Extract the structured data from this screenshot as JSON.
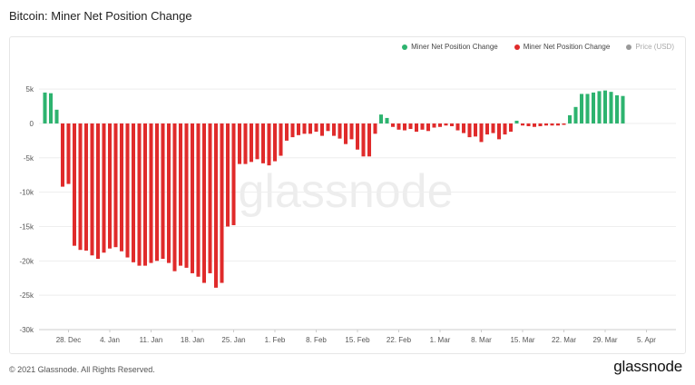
{
  "title": "Bitcoin: Miner Net Position Change",
  "footer": {
    "copyright": "© 2021 Glassnode. All Rights Reserved.",
    "logo": "glassnode"
  },
  "watermark": "glassnode",
  "colors": {
    "positive": "#2db36f",
    "negative": "#e02b2b",
    "price": "#999999",
    "grid": "#eeeeee"
  },
  "chart_data": {
    "type": "bar",
    "title": "Bitcoin: Miner Net Position Change",
    "legend": [
      {
        "name": "Miner Net Position Change",
        "color": "#2db36f",
        "icon": "green-dot"
      },
      {
        "name": "Miner Net Position Change",
        "color": "#e02b2b",
        "icon": "red-dot"
      },
      {
        "name": "Price (USD)",
        "color": "#999999",
        "icon": "gray-dot"
      }
    ],
    "legend_position": "top-right",
    "x_range": [
      "2020-12-23",
      "2021-04-10"
    ],
    "ylim": [
      -30000,
      7000
    ],
    "y_ticks": [
      5000,
      0,
      -5000,
      -10000,
      -15000,
      -20000,
      -25000,
      -30000
    ],
    "y_tick_labels": [
      "5k",
      "0",
      "-5k",
      "-10k",
      "-15k",
      "-20k",
      "-25k",
      "-30k"
    ],
    "x_ticks": [
      "2020-12-28",
      "2021-01-04",
      "2021-01-11",
      "2021-01-18",
      "2021-01-25",
      "2021-02-01",
      "2021-02-08",
      "2021-02-15",
      "2021-02-22",
      "2021-03-01",
      "2021-03-08",
      "2021-03-15",
      "2021-03-22",
      "2021-03-29",
      "2021-04-05"
    ],
    "x_tick_labels": [
      "28. Dec",
      "4. Jan",
      "11. Jan",
      "18. Jan",
      "25. Jan",
      "1. Feb",
      "8. Feb",
      "15. Feb",
      "22. Feb",
      "1. Mar",
      "8. Mar",
      "15. Mar",
      "22. Mar",
      "29. Mar",
      "5. Apr"
    ],
    "grid": true,
    "start_date": "2020-12-24",
    "series": [
      {
        "name": "Miner Net Position Change",
        "values": [
          4500,
          4400,
          2000,
          -9200,
          -8800,
          -17800,
          -18400,
          -18500,
          -19200,
          -19700,
          -18800,
          -18200,
          -18000,
          -18600,
          -19500,
          -20200,
          -20700,
          -20700,
          -20300,
          -20000,
          -19700,
          -20300,
          -21500,
          -20700,
          -21000,
          -21800,
          -22300,
          -23200,
          -21800,
          -23900,
          -23200,
          -15000,
          -14800,
          -5900,
          -5900,
          -5600,
          -5200,
          -5800,
          -6100,
          -5500,
          -4700,
          -2500,
          -2000,
          -1700,
          -1500,
          -1500,
          -1200,
          -1800,
          -1100,
          -1800,
          -2200,
          -3000,
          -2300,
          -3800,
          -4800,
          -4800,
          -1500,
          1300,
          800,
          -500,
          -900,
          -1000,
          -800,
          -1200,
          -900,
          -1100,
          -600,
          -500,
          -300,
          -400,
          -1000,
          -1400,
          -2000,
          -1900,
          -2700,
          -1600,
          -1400,
          -2300,
          -1600,
          -1200,
          400,
          -300,
          -400,
          -500,
          -400,
          -300,
          -300,
          -300,
          -200,
          1200,
          2400,
          4300,
          4300,
          4500,
          4700,
          4800,
          4600,
          4100,
          4000
        ]
      }
    ]
  }
}
